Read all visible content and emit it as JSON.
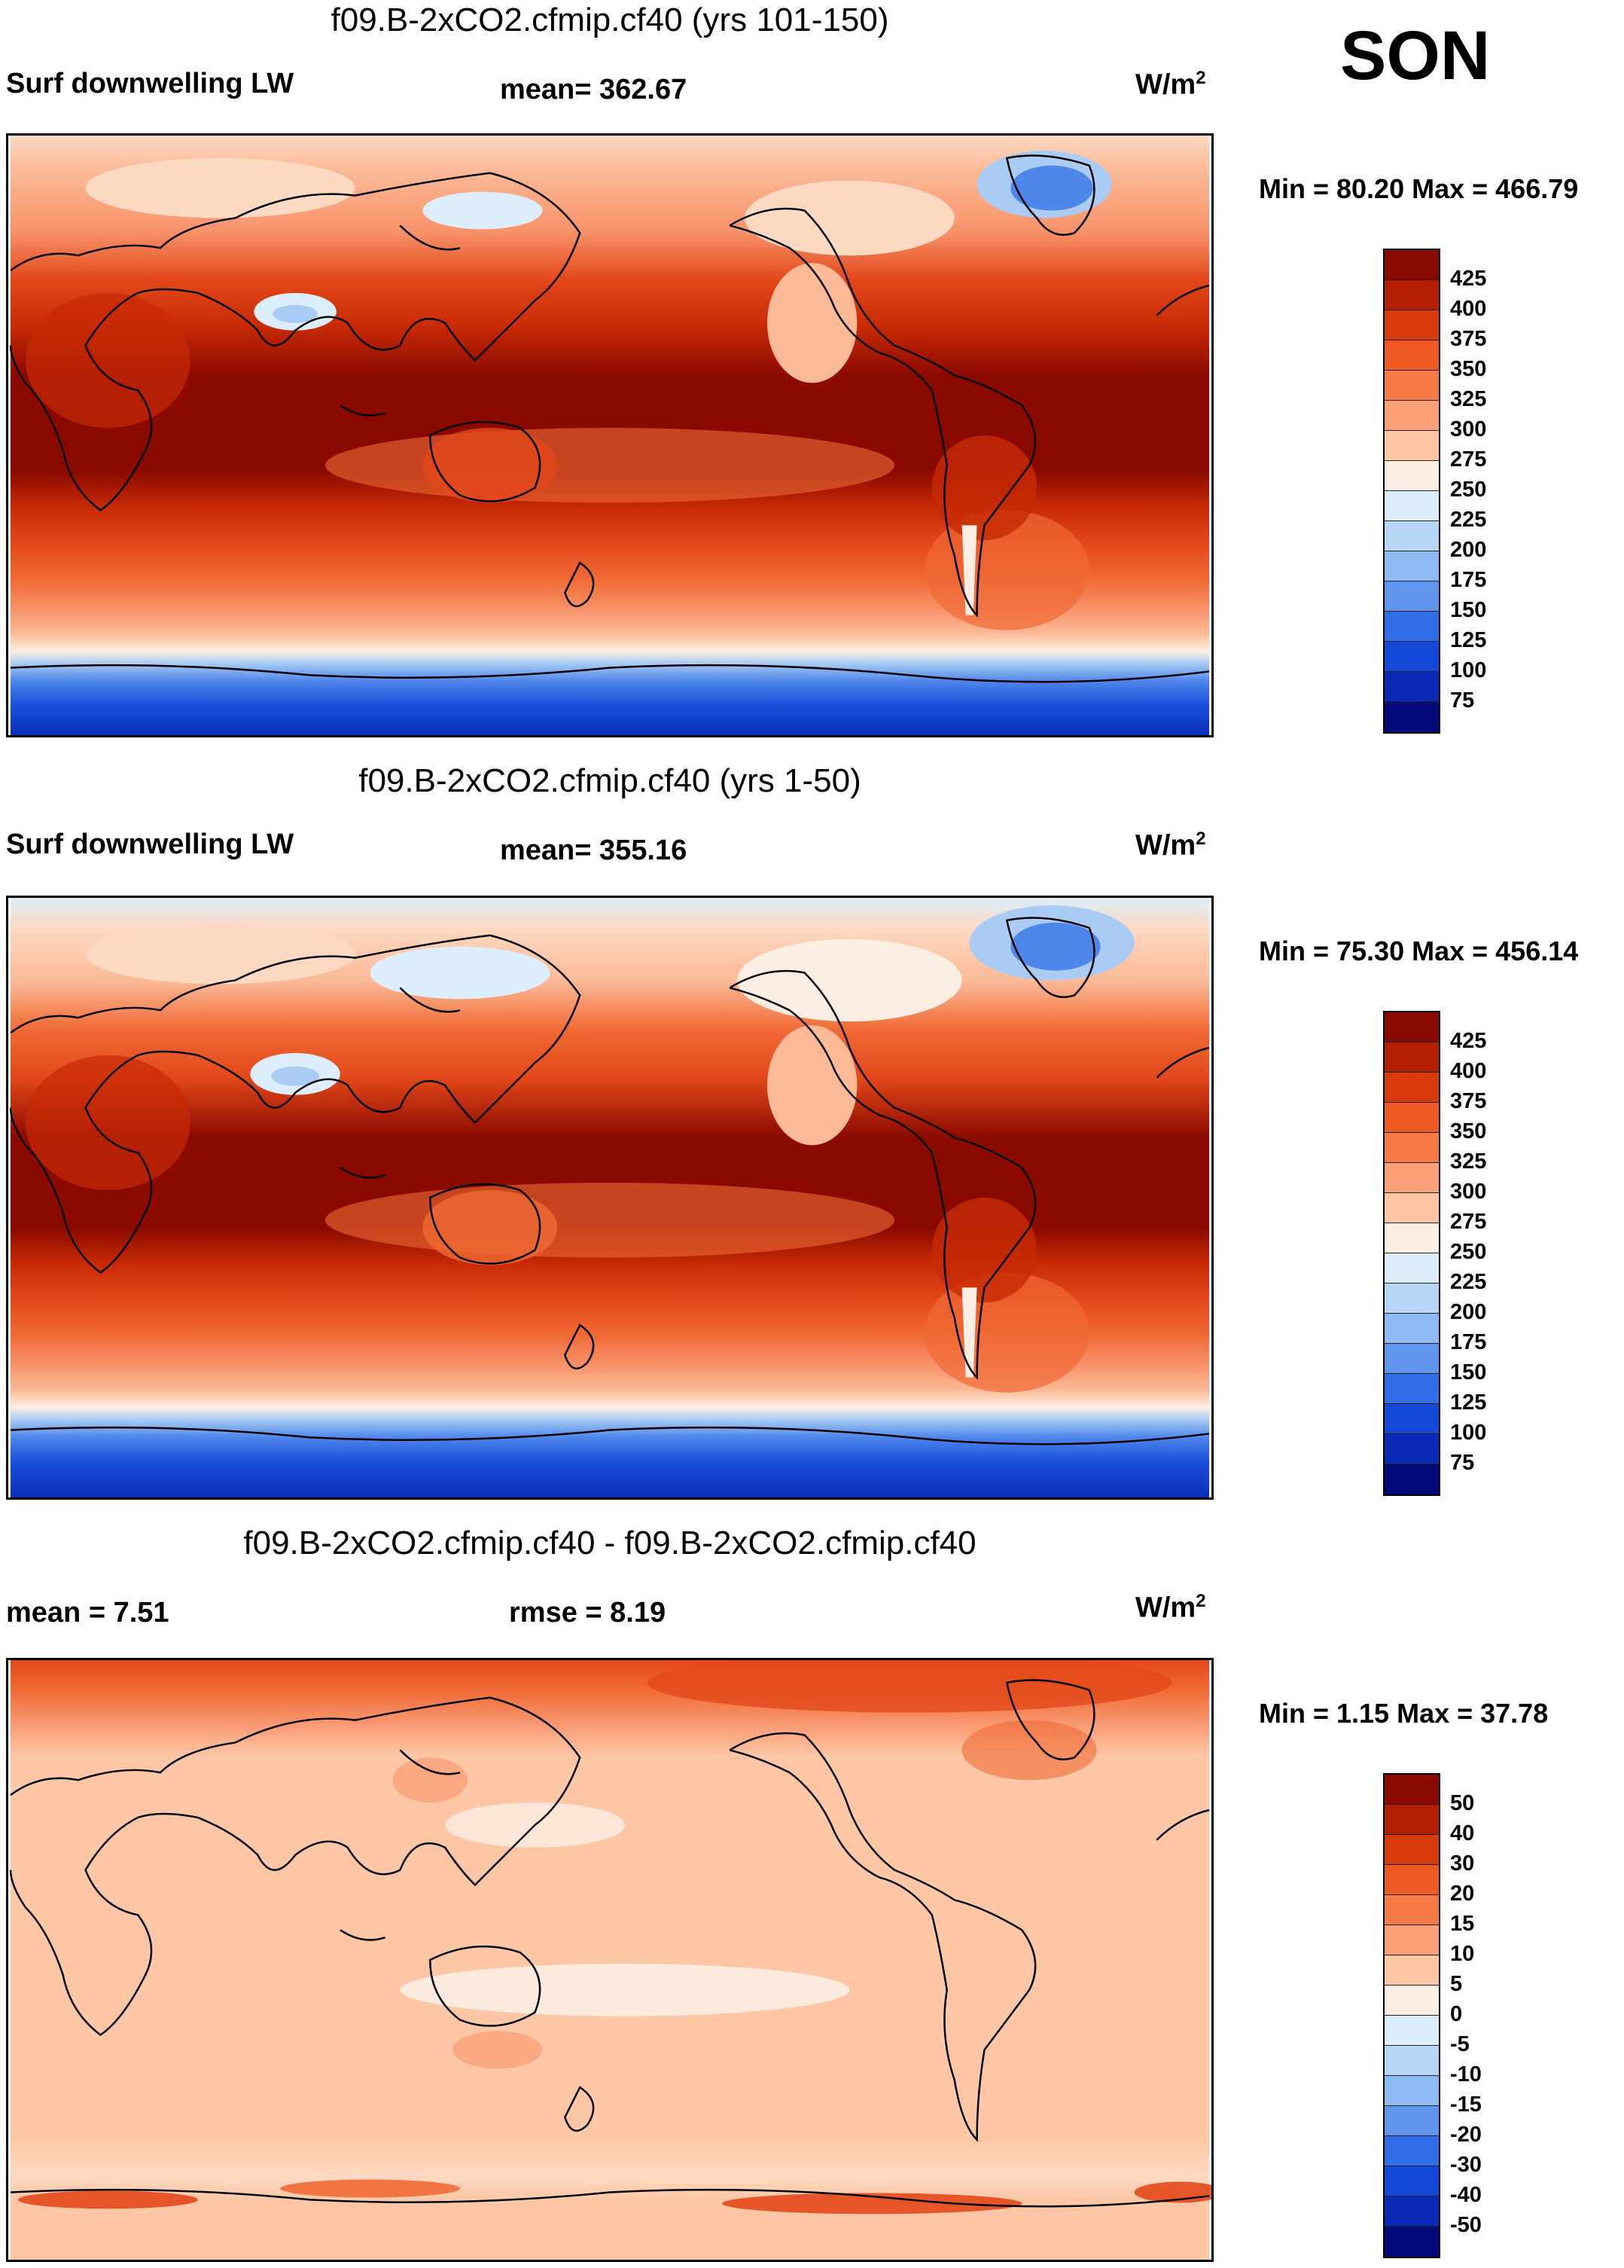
{
  "season": "SON",
  "panels": [
    {
      "title": "f09.B-2xCO2.cfmip.cf40 (yrs 101-150)",
      "left_label": "Surf downwelling LW",
      "mid_label": "mean= 362.67",
      "units": "W/m",
      "units_sup": "2",
      "minmax": "Min =  80.20 Max = 466.79",
      "kind": "abs"
    },
    {
      "title": "f09.B-2xCO2.cfmip.cf40 (yrs 1-50)",
      "left_label": "Surf downwelling LW",
      "mid_label": "mean= 355.16",
      "units": "W/m",
      "units_sup": "2",
      "minmax": "Min =  75.30 Max = 456.14",
      "kind": "abs"
    },
    {
      "title": "f09.B-2xCO2.cfmip.cf40 - f09.B-2xCO2.cfmip.cf40",
      "left_label": "mean =   7.51",
      "mid_label": "rmse =   8.19",
      "units": "W/m",
      "units_sup": "2",
      "minmax": "Min =   1.15 Max =  37.78",
      "kind": "diff"
    }
  ],
  "colorbars": {
    "abs": {
      "labels": [
        "425",
        "400",
        "375",
        "350",
        "325",
        "300",
        "275",
        "250",
        "225",
        "200",
        "175",
        "150",
        "125",
        "100",
        "75"
      ],
      "colors": [
        "#8a0a00",
        "#b31e00",
        "#d83a0d",
        "#f05a25",
        "#f57a45",
        "#fba078",
        "#fdc7a6",
        "#fdeee3",
        "#dceefb",
        "#b8d6f7",
        "#8fb9f2",
        "#5f95ec",
        "#326ee8",
        "#1448d6",
        "#0a2ab5",
        "#040a78"
      ]
    },
    "diff": {
      "labels": [
        "50",
        "40",
        "30",
        "20",
        "15",
        "10",
        "5",
        "0",
        "-5",
        "-10",
        "-15",
        "-20",
        "-30",
        "-40",
        "-50"
      ],
      "colors": [
        "#8a0a00",
        "#b31e00",
        "#d83a0d",
        "#f05a25",
        "#f57a45",
        "#fba078",
        "#fdc7a6",
        "#fdeee3",
        "#dceefb",
        "#b8d6f7",
        "#8fb9f2",
        "#5f95ec",
        "#326ee8",
        "#1448d6",
        "#0a2ab5",
        "#040a78"
      ]
    }
  },
  "palette": {
    "dark_red": "#8a0a00",
    "red": "#c72a05",
    "orange_red": "#e3481a",
    "orange": "#f06a35",
    "salmon": "#f8926a",
    "peach": "#fbb996",
    "light_peach": "#fdd9c2",
    "cream": "#fdeee3",
    "pale_blue": "#dceefb",
    "light_blue": "#a9cbf4",
    "blue": "#4f86ea",
    "deep_blue": "#1a4fdc",
    "navy": "#0b2fb8"
  }
}
